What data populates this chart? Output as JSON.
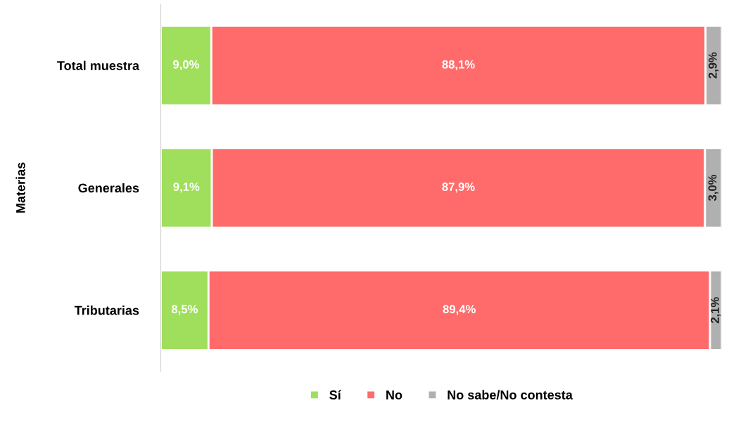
{
  "chart_data": {
    "type": "bar",
    "orientation": "horizontal",
    "stacked": true,
    "ylabel": "Materias",
    "categories": [
      "Total muestra",
      "Generales",
      "Tributarias"
    ],
    "xlim": [
      0,
      100
    ],
    "tick_labels": "y",
    "legend": "bottom",
    "grid": false,
    "series": [
      {
        "name": "Sí",
        "color": "#a0df5c",
        "values": [
          9.0,
          9.1,
          8.5
        ],
        "value_labels": [
          "9,0%",
          "9,1%",
          "8,5%"
        ]
      },
      {
        "name": "No",
        "color": "#ff6b6b",
        "values": [
          88.1,
          87.9,
          89.4
        ],
        "value_labels": [
          "88,1%",
          "87,9%",
          "89,4%"
        ]
      },
      {
        "name": "No sabe/No contesta",
        "color": "#b0b0b0",
        "values": [
          2.9,
          3.0,
          2.1
        ],
        "value_labels": [
          "2,9%",
          "3,0%",
          "2,1%"
        ]
      }
    ]
  }
}
